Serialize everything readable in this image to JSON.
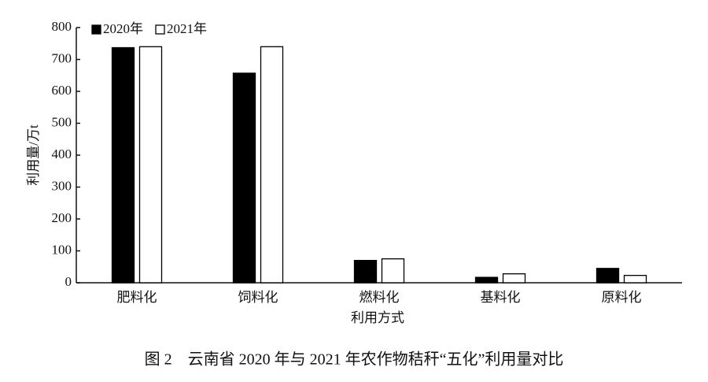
{
  "chart_data": {
    "type": "bar",
    "title": "图 2　云南省 2020 年与 2021 年农作物秸秆“五化”利用量对比",
    "x_label": "利用方式",
    "y_label": "利用量/万t",
    "categories": [
      "肥料化",
      "饲料化",
      "燃料化",
      "基料化",
      "原料化"
    ],
    "series": [
      {
        "name": "2020年",
        "color": "#000000",
        "values": [
          737,
          657,
          70,
          17,
          45
        ]
      },
      {
        "name": "2021年",
        "color": "#ffffff",
        "values": [
          740,
          740,
          75,
          28,
          23
        ]
      }
    ],
    "ylim": [
      0,
      800
    ],
    "yticks": [
      0,
      100,
      200,
      300,
      400,
      500,
      600,
      700,
      800
    ],
    "legend": "top-left"
  }
}
